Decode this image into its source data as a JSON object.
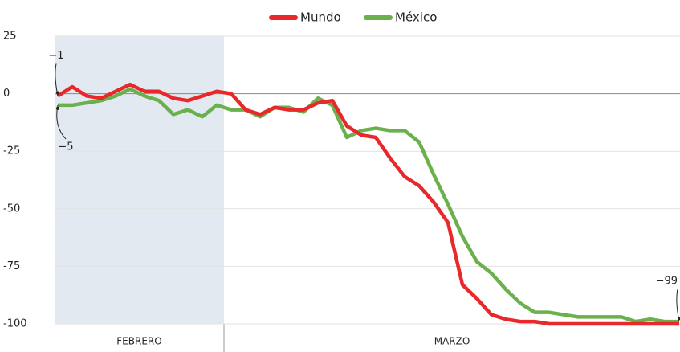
{
  "chart_data": {
    "type": "line",
    "categories": [
      null,
      null,
      null,
      null,
      null,
      null,
      null,
      null,
      null,
      null,
      null,
      null,
      null,
      null,
      null,
      null,
      null,
      null,
      null,
      null,
      null,
      null,
      null,
      null,
      null,
      null,
      null,
      null,
      null,
      null,
      null,
      null,
      null,
      null,
      null,
      null,
      null,
      null,
      null,
      null,
      null,
      null,
      null,
      null
    ],
    "periods": [
      {
        "label": "FEBRERO",
        "count": 12,
        "shaded": true
      },
      {
        "label": "MARZO",
        "count": 32,
        "shaded": false
      }
    ],
    "series": [
      {
        "name": "Mundo",
        "color": "#e8282b",
        "values": [
          -1,
          3,
          -1,
          -2,
          1,
          4,
          1,
          1,
          -2,
          -3,
          -1,
          1,
          0,
          -7,
          -9,
          -6,
          -7,
          -7,
          -4,
          -3,
          -14,
          -18,
          -19,
          -28,
          -36,
          -40,
          -47,
          -56,
          -83,
          -89,
          -96,
          -98,
          -99,
          -99,
          -100,
          -100,
          -100,
          -100,
          -100,
          -100,
          -100,
          -100,
          -100,
          -100
        ],
        "value_labels": [
          "−1",
          null,
          null,
          null,
          null,
          null,
          null,
          null,
          null,
          null,
          null,
          null,
          null,
          null,
          null,
          null,
          null,
          null,
          null,
          null,
          null,
          null,
          null,
          null,
          null,
          null,
          null,
          null,
          null,
          null,
          null,
          null,
          null,
          null,
          null,
          null,
          null,
          null,
          null,
          null,
          null,
          null,
          null,
          null
        ]
      },
      {
        "name": "México",
        "color": "#6ab04c",
        "values": [
          -5,
          -5,
          -4,
          -3,
          -1,
          2,
          -1,
          -3,
          -9,
          -7,
          -10,
          -5,
          -7,
          -7,
          -10,
          -6,
          -6,
          -8,
          -2,
          -5,
          -19,
          -16,
          -15,
          -16,
          -16,
          -21,
          -35,
          -48,
          -62,
          -73,
          -78,
          -85,
          -91,
          -95,
          -95,
          -96,
          -97,
          -97,
          -97,
          -97,
          -99,
          -98,
          -99,
          -99
        ],
        "value_labels": [
          "−5",
          null,
          null,
          null,
          null,
          null,
          null,
          null,
          null,
          null,
          null,
          null,
          null,
          null,
          null,
          null,
          null,
          null,
          null,
          null,
          null,
          null,
          null,
          null,
          null,
          null,
          null,
          null,
          null,
          null,
          null,
          null,
          null,
          null,
          null,
          null,
          null,
          null,
          null,
          null,
          null,
          null,
          null,
          "−99"
        ]
      }
    ],
    "ylim": [
      -100,
      25
    ],
    "yticks": [
      25,
      0,
      -25,
      -50,
      -75,
      -100
    ],
    "grid": true
  }
}
